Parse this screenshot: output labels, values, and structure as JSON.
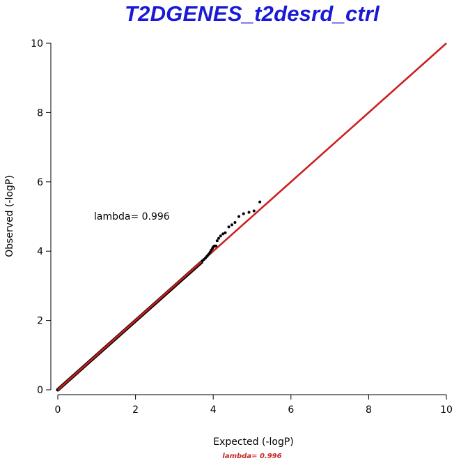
{
  "chart_data": {
    "type": "scatter",
    "title": "T2DGENES_t2desrd_ctrl",
    "xlabel": "Expected (-logP)",
    "ylabel": "Observed (-logP)",
    "xlim": [
      0,
      10
    ],
    "ylim": [
      0,
      10
    ],
    "xticks": [
      "0",
      "2",
      "4",
      "6",
      "8",
      "10"
    ],
    "yticks": [
      "0",
      "2",
      "4",
      "6",
      "8",
      "10"
    ],
    "annotation": "lambda= 0.996",
    "footnote": "lambda= 0.996",
    "legend": "none",
    "grid": false,
    "reference_line": {
      "from": [
        0,
        0
      ],
      "to": [
        10,
        10
      ],
      "color": "#cc1f1f"
    },
    "points_color": "#000000",
    "dense_band": {
      "x_start": 0,
      "x_end": 3.7,
      "observed_over_expected": 0.996
    },
    "series": [
      {
        "points": [
          [
            3.72,
            3.72
          ],
          [
            3.76,
            3.76
          ],
          [
            3.8,
            3.8
          ],
          [
            3.83,
            3.84
          ],
          [
            3.86,
            3.88
          ],
          [
            3.89,
            3.92
          ],
          [
            3.92,
            3.97
          ],
          [
            3.95,
            4.03
          ],
          [
            3.98,
            4.08
          ],
          [
            4.0,
            4.12
          ],
          [
            4.03,
            4.15
          ],
          [
            4.07,
            4.15
          ],
          [
            4.1,
            4.3
          ],
          [
            4.14,
            4.37
          ],
          [
            4.19,
            4.44
          ],
          [
            4.25,
            4.5
          ],
          [
            4.31,
            4.53
          ],
          [
            4.4,
            4.7
          ],
          [
            4.48,
            4.76
          ],
          [
            4.56,
            4.83
          ],
          [
            4.66,
            5.0
          ],
          [
            4.78,
            5.08
          ],
          [
            4.92,
            5.12
          ],
          [
            5.05,
            5.16
          ],
          [
            5.2,
            5.42
          ]
        ]
      }
    ]
  },
  "colors": {
    "title": "#1a1ad6",
    "reference_line": "#cc1f1f",
    "points": "#000000",
    "footnote": "#c62828"
  }
}
